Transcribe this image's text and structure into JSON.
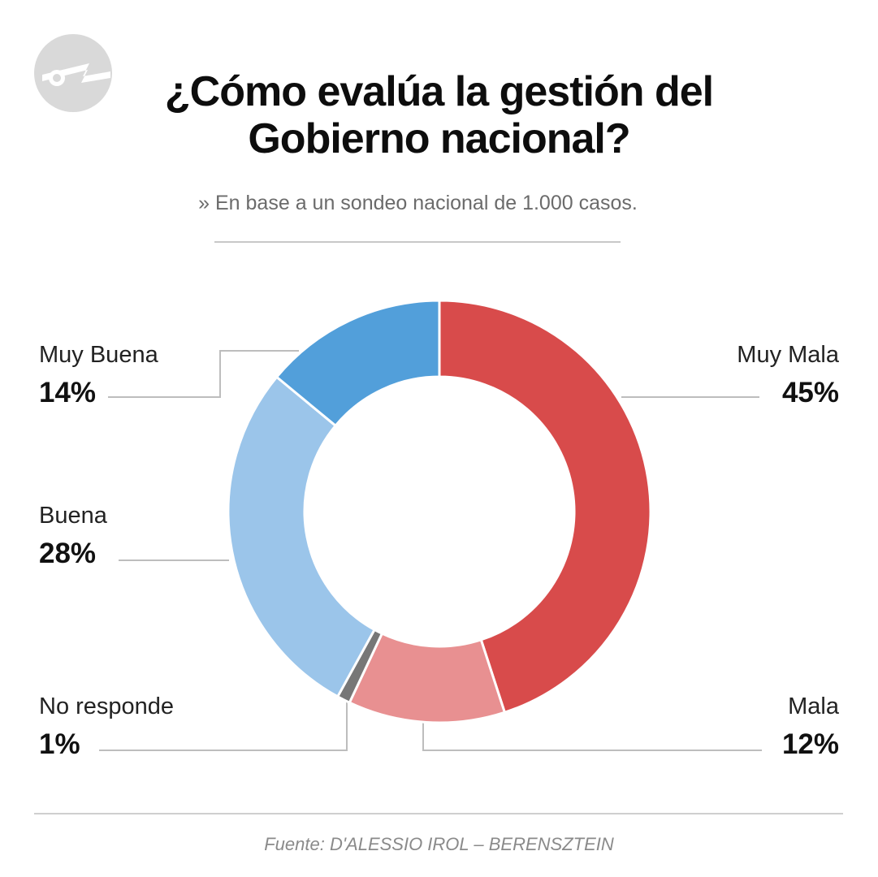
{
  "title_lines": [
    "¿Cómo evalúa la gestión del",
    "Gobierno nacional?"
  ],
  "subtitle": "» En base a un sondeo nacional de 1.000 casos.",
  "source": "Fuente: D'ALESSIO IROL – BERENSZTEIN",
  "logo_icon": "publisher-logo-icon",
  "chart_data": {
    "type": "pie",
    "donut": true,
    "labels": [
      "Muy Mala",
      "Mala",
      "No responde",
      "Buena",
      "Muy Buena"
    ],
    "values": [
      45,
      12,
      1,
      28,
      14
    ],
    "value_labels": [
      "45%",
      "12%",
      "1%",
      "28%",
      "14%"
    ],
    "colors": [
      "#d84b4b",
      "#e89091",
      "#777777",
      "#9bc5ea",
      "#529fda"
    ]
  }
}
